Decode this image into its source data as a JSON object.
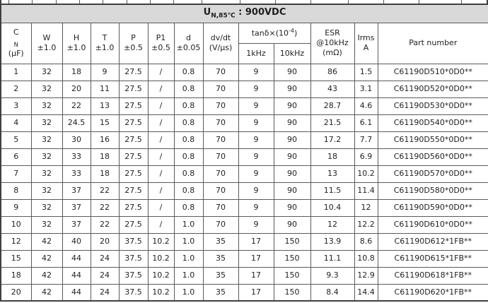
{
  "colors": {
    "title_band_bg": "#d9d9d9",
    "border": "#5a5a5a",
    "outer_border": "#3f3f3f",
    "text": "#1f1f1f"
  },
  "title": {
    "base": "U",
    "subscript": "N,85℃",
    "rest": " : 900VDC"
  },
  "columns": {
    "cn": {
      "symbol": "C",
      "symbol_sub": "N",
      "unit": "(µF)"
    },
    "w": {
      "label": "W",
      "tol": "±1.0"
    },
    "h": {
      "label": "H",
      "tol": "±1.0"
    },
    "t": {
      "label": "T",
      "tol": "±1.0"
    },
    "p": {
      "label": "P",
      "tol": "±0.5"
    },
    "p1": {
      "label": "P1",
      "tol": "±0.5"
    },
    "d": {
      "label": "d",
      "tol": "±0.05"
    },
    "dvdt": {
      "label": "dv/dt",
      "unit": "(V/µs)"
    },
    "tan_delta": {
      "label_base": "tanδ×(10",
      "label_sup": "-4",
      "label_close": ")",
      "sub_1khz": "1kHz",
      "sub_10khz": "10kHz"
    },
    "esr": {
      "line1": "ESR",
      "line2": "@10kHz",
      "line3": "(mΩ)"
    },
    "irms": {
      "line1": "Irms",
      "line2": "A"
    },
    "part_number": {
      "label": "Part number"
    }
  },
  "rows": [
    [
      "1",
      "32",
      "18",
      "9",
      "27.5",
      "/",
      "0.8",
      "70",
      "9",
      "90",
      "86",
      "1.5",
      "C61190D510*0D0**"
    ],
    [
      "2",
      "32",
      "20",
      "11",
      "27.5",
      "/",
      "0.8",
      "70",
      "9",
      "90",
      "43",
      "3.1",
      "C61190D520*0D0**"
    ],
    [
      "3",
      "32",
      "22",
      "13",
      "27.5",
      "/",
      "0.8",
      "70",
      "9",
      "90",
      "28.7",
      "4.6",
      "C61190D530*0D0**"
    ],
    [
      "4",
      "32",
      "24.5",
      "15",
      "27.5",
      "/",
      "0.8",
      "70",
      "9",
      "90",
      "21.5",
      "6.1",
      "C61190D540*0D0**"
    ],
    [
      "5",
      "32",
      "30",
      "16",
      "27.5",
      "/",
      "0.8",
      "70",
      "9",
      "90",
      "17.2",
      "7.7",
      "C61190D550*0D0**"
    ],
    [
      "6",
      "32",
      "33",
      "18",
      "27.5",
      "/",
      "0.8",
      "70",
      "9",
      "90",
      "18",
      "6.9",
      "C61190D560*0D0**"
    ],
    [
      "7",
      "32",
      "33",
      "18",
      "27.5",
      "/",
      "0.8",
      "70",
      "9",
      "90",
      "13",
      "10.2",
      "C61190D570*0D0**"
    ],
    [
      "8",
      "32",
      "37",
      "22",
      "27.5",
      "/",
      "0.8",
      "70",
      "9",
      "90",
      "11.5",
      "11.4",
      "C61190D580*0D0**"
    ],
    [
      "9",
      "32",
      "37",
      "22",
      "27.5",
      "/",
      "0.8",
      "70",
      "9",
      "90",
      "10.4",
      "12",
      "C61190D590*0D0**"
    ],
    [
      "10",
      "32",
      "37",
      "22",
      "27.5",
      "/",
      "1.0",
      "70",
      "9",
      "90",
      "12",
      "12.2",
      "C61190D610*0D0**"
    ],
    [
      "12",
      "42",
      "40",
      "20",
      "37.5",
      "10.2",
      "1.0",
      "35",
      "17",
      "150",
      "13.9",
      "8.6",
      "C61190D612*1FB**"
    ],
    [
      "15",
      "42",
      "44",
      "24",
      "37.5",
      "10.2",
      "1.0",
      "35",
      "17",
      "150",
      "11.1",
      "10.8",
      "C61190D615*1FB**"
    ],
    [
      "18",
      "42",
      "44",
      "24",
      "37.5",
      "10.2",
      "1.0",
      "35",
      "17",
      "150",
      "9.3",
      "12.9",
      "C61190D618*1FB**"
    ],
    [
      "20",
      "42",
      "44",
      "24",
      "37.5",
      "10.2",
      "1.0",
      "35",
      "17",
      "150",
      "8.4",
      "14.4",
      "C61190D620*1FB**"
    ]
  ]
}
